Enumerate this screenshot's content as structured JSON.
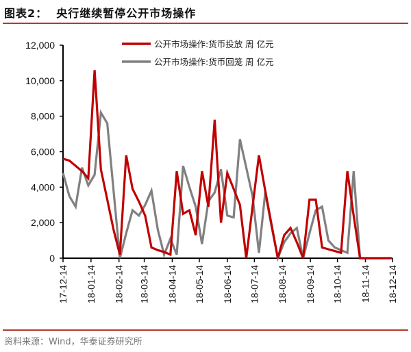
{
  "header": {
    "title": "图表2：  央行继续暂停公开市场操作"
  },
  "footer": {
    "source": "资料来源：Wind，华泰证券研究所"
  },
  "chart_data": {
    "type": "line",
    "title": "",
    "xlabel": "",
    "ylabel": "",
    "ylim": [
      0,
      12000
    ],
    "yticks": [
      "0",
      "2,000",
      "4,000",
      "6,000",
      "8,000",
      "10,000",
      "12,000"
    ],
    "ytick_values": [
      0,
      2000,
      4000,
      6000,
      8000,
      10000,
      12000
    ],
    "xlim": [
      "2017-12-14",
      "2018-12-14"
    ],
    "xticks": [
      "17-12-14",
      "18-01-14",
      "18-02-14",
      "18-03-14",
      "18-04-14",
      "18-05-14",
      "18-06-14",
      "18-07-14",
      "18-08-14",
      "18-09-14",
      "18-10-14",
      "18-11-14",
      "18-12-14"
    ],
    "xtick_dates": [
      "2017-12-14",
      "2018-01-14",
      "2018-02-14",
      "2018-03-14",
      "2018-04-14",
      "2018-05-14",
      "2018-06-14",
      "2018-07-14",
      "2018-08-14",
      "2018-09-14",
      "2018-10-14",
      "2018-11-14",
      "2018-12-14"
    ],
    "grid": false,
    "legend_position": "top-center",
    "x": [
      "2017-12-14",
      "2017-12-21",
      "2017-12-28",
      "2018-01-04",
      "2018-01-11",
      "2018-01-18",
      "2018-01-25",
      "2018-02-01",
      "2018-02-08",
      "2018-02-15",
      "2018-02-22",
      "2018-03-01",
      "2018-03-08",
      "2018-03-15",
      "2018-03-22",
      "2018-03-29",
      "2018-04-05",
      "2018-04-12",
      "2018-04-19",
      "2018-04-26",
      "2018-05-03",
      "2018-05-10",
      "2018-05-17",
      "2018-05-24",
      "2018-05-31",
      "2018-06-07",
      "2018-06-14",
      "2018-06-21",
      "2018-06-28",
      "2018-07-05",
      "2018-07-12",
      "2018-07-19",
      "2018-07-26",
      "2018-08-02",
      "2018-08-09",
      "2018-08-16",
      "2018-08-23",
      "2018-08-30",
      "2018-09-06",
      "2018-09-13",
      "2018-09-20",
      "2018-09-27",
      "2018-10-04",
      "2018-10-11",
      "2018-10-18",
      "2018-10-25",
      "2018-11-01",
      "2018-11-08",
      "2018-11-15",
      "2018-11-22",
      "2018-11-29",
      "2018-12-06",
      "2018-12-13"
    ],
    "series": [
      {
        "name": "公开市场操作:货币投放 周 亿元",
        "color": "#c00000",
        "values": [
          5600,
          5500,
          5200,
          4900,
          4500,
          10600,
          5000,
          3300,
          1600,
          200,
          5800,
          3900,
          3200,
          2400,
          600,
          450,
          350,
          200,
          4900,
          2500,
          2700,
          1300,
          4900,
          2900,
          7800,
          2000,
          4800,
          3900,
          3000,
          0,
          2900,
          5800,
          3800,
          1900,
          0,
          1300,
          1700,
          900,
          0,
          3300,
          3300,
          600,
          500,
          400,
          300,
          4900,
          2400,
          0,
          0,
          0,
          0,
          0,
          0
        ]
      },
      {
        "name": "公开市场操作:货币回笼 周 亿元",
        "color": "#808080",
        "values": [
          4800,
          3500,
          2900,
          5100,
          4100,
          4700,
          8200,
          7600,
          3800,
          0,
          1400,
          2700,
          2400,
          3000,
          3800,
          1600,
          200,
          1100,
          200,
          5200,
          4000,
          2900,
          800,
          3200,
          3700,
          5000,
          2400,
          2300,
          6700,
          5100,
          3500,
          300,
          3700,
          1800,
          0,
          900,
          1400,
          1700,
          0,
          1400,
          2700,
          2900,
          1000,
          600,
          450,
          300,
          4900,
          0,
          0,
          0,
          0,
          0,
          0
        ]
      }
    ]
  }
}
